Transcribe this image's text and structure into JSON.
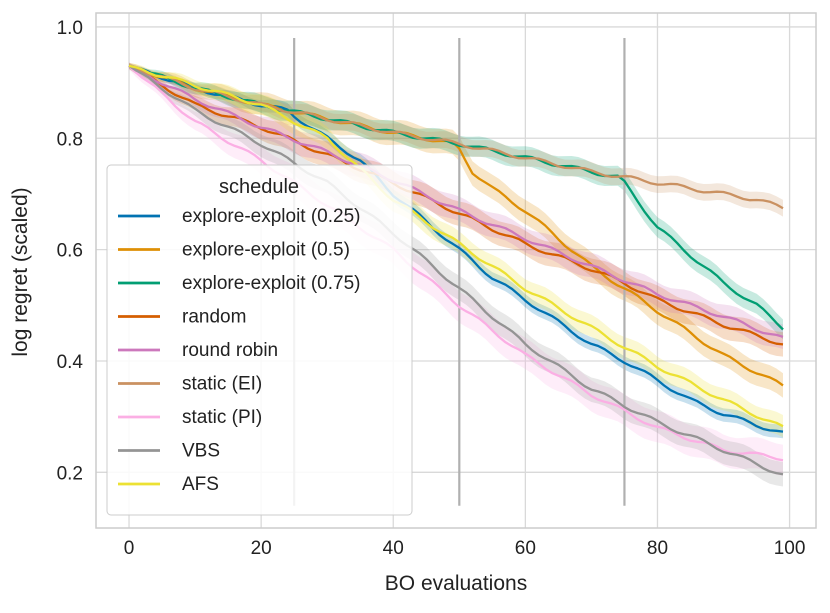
{
  "chart_data": {
    "type": "line",
    "title": "",
    "xlabel": "BO evaluations",
    "ylabel": "log regret (scaled)",
    "xlim": [
      -5,
      104
    ],
    "ylim": [
      0.1,
      1.025
    ],
    "xticks": [
      0,
      20,
      40,
      60,
      80,
      100
    ],
    "yticks": [
      0.2,
      0.4,
      0.6,
      0.8,
      1.0
    ],
    "xtick_labels": [
      "0",
      "20",
      "40",
      "60",
      "80",
      "100"
    ],
    "ytick_labels": [
      "0.2",
      "0.4",
      "0.6",
      "0.8",
      "1.0"
    ],
    "grid": true,
    "vlines": {
      "x": [
        25,
        50,
        75
      ],
      "y_range": [
        0.14,
        0.98
      ],
      "color": "#b0b0b0"
    },
    "legend": {
      "title": "schedule",
      "position": "center-left"
    },
    "series": [
      {
        "name": "explore-exploit (0.25)",
        "color": "#0173b2",
        "x": [
          0,
          10,
          20,
          24,
          25,
          30,
          35,
          40,
          45,
          50,
          55,
          60,
          65,
          70,
          75,
          80,
          85,
          90,
          95,
          99
        ],
        "values": [
          0.93,
          0.89,
          0.86,
          0.85,
          0.84,
          0.8,
          0.76,
          0.7,
          0.65,
          0.6,
          0.55,
          0.51,
          0.47,
          0.43,
          0.4,
          0.365,
          0.33,
          0.305,
          0.285,
          0.27
        ],
        "band": 0.012
      },
      {
        "name": "explore-exploit (0.5)",
        "color": "#de8f05",
        "x": [
          0,
          10,
          20,
          30,
          40,
          45,
          49,
          50,
          52,
          55,
          60,
          65,
          70,
          75,
          80,
          85,
          90,
          95,
          99
        ],
        "values": [
          0.93,
          0.89,
          0.86,
          0.835,
          0.81,
          0.8,
          0.79,
          0.78,
          0.74,
          0.71,
          0.67,
          0.62,
          0.57,
          0.53,
          0.49,
          0.45,
          0.41,
          0.38,
          0.355
        ],
        "band": 0.022
      },
      {
        "name": "explore-exploit (0.75)",
        "color": "#029e73",
        "x": [
          0,
          10,
          20,
          30,
          40,
          50,
          60,
          70,
          74,
          75,
          80,
          85,
          90,
          95,
          99
        ],
        "values": [
          0.93,
          0.89,
          0.86,
          0.835,
          0.81,
          0.79,
          0.765,
          0.74,
          0.73,
          0.72,
          0.64,
          0.59,
          0.54,
          0.5,
          0.46
        ],
        "band": 0.018
      },
      {
        "name": "random",
        "color": "#d55e00",
        "x": [
          0,
          10,
          20,
          30,
          40,
          50,
          60,
          70,
          75,
          80,
          90,
          99
        ],
        "values": [
          0.93,
          0.86,
          0.82,
          0.77,
          0.72,
          0.665,
          0.61,
          0.565,
          0.54,
          0.51,
          0.465,
          0.43
        ],
        "band": 0.022
      },
      {
        "name": "round robin",
        "color": "#cc78bc",
        "x": [
          0,
          10,
          20,
          30,
          40,
          50,
          60,
          70,
          80,
          90,
          99
        ],
        "values": [
          0.93,
          0.87,
          0.82,
          0.775,
          0.725,
          0.67,
          0.62,
          0.57,
          0.52,
          0.48,
          0.44
        ],
        "band": 0.022
      },
      {
        "name": "static (EI)",
        "color": "#ca9161",
        "x": [
          0,
          10,
          20,
          30,
          40,
          50,
          60,
          70,
          80,
          90,
          95,
          99
        ],
        "values": [
          0.93,
          0.89,
          0.86,
          0.835,
          0.81,
          0.79,
          0.765,
          0.74,
          0.72,
          0.7,
          0.69,
          0.675
        ],
        "band": 0.015
      },
      {
        "name": "static (PI)",
        "color": "#fbafe4",
        "x": [
          0,
          10,
          20,
          30,
          40,
          50,
          60,
          70,
          80,
          90,
          99
        ],
        "values": [
          0.93,
          0.83,
          0.76,
          0.68,
          0.6,
          0.5,
          0.41,
          0.34,
          0.28,
          0.24,
          0.225
        ],
        "band": 0.028
      },
      {
        "name": "VBS",
        "color": "#949494",
        "x": [
          0,
          10,
          20,
          30,
          40,
          50,
          60,
          70,
          80,
          90,
          99
        ],
        "values": [
          0.93,
          0.85,
          0.79,
          0.72,
          0.63,
          0.53,
          0.43,
          0.35,
          0.29,
          0.24,
          0.195
        ],
        "band": 0.022
      },
      {
        "name": "AFS",
        "color": "#ece133",
        "x": [
          0,
          10,
          20,
          30,
          40,
          50,
          60,
          70,
          80,
          90,
          99
        ],
        "values": [
          0.93,
          0.895,
          0.86,
          0.8,
          0.69,
          0.61,
          0.53,
          0.46,
          0.39,
          0.33,
          0.28
        ],
        "band": 0.02
      }
    ]
  }
}
